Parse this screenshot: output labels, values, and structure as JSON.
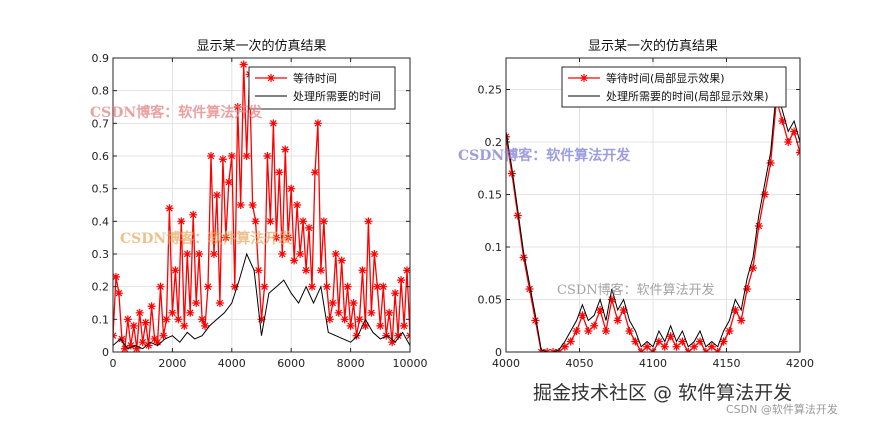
{
  "chart_data": [
    {
      "type": "line",
      "title": "显示某一次的仿真结果",
      "xlim": [
        0,
        10000
      ],
      "ylim": [
        0,
        0.9
      ],
      "xticks": [
        0,
        2000,
        4000,
        6000,
        8000,
        10000
      ],
      "yticks": [
        0,
        0.1,
        0.2,
        0.3,
        0.4,
        0.5,
        0.6,
        0.7,
        0.8,
        0.9
      ],
      "grid": true,
      "legend_position": "top-right",
      "series": [
        {
          "name": "等待时间",
          "color": "#ff0000",
          "marker": "asterisk",
          "x": [
            0,
            100,
            200,
            300,
            400,
            500,
            600,
            700,
            800,
            900,
            1000,
            1100,
            1200,
            1300,
            1400,
            1500,
            1600,
            1700,
            1800,
            1900,
            2000,
            2100,
            2200,
            2300,
            2400,
            2500,
            2600,
            2700,
            2800,
            2900,
            3000,
            3100,
            3200,
            3300,
            3400,
            3500,
            3600,
            3700,
            3800,
            3900,
            4000,
            4100,
            4200,
            4300,
            4400,
            4500,
            4600,
            4700,
            4800,
            4900,
            5000,
            5100,
            5200,
            5300,
            5400,
            5500,
            5600,
            5700,
            5800,
            5900,
            6000,
            6100,
            6200,
            6300,
            6400,
            6500,
            6600,
            6700,
            6800,
            6900,
            7000,
            7100,
            7200,
            7300,
            7400,
            7500,
            7600,
            7700,
            7800,
            7900,
            8000,
            8100,
            8200,
            8300,
            8400,
            8500,
            8600,
            8700,
            8800,
            8900,
            9000,
            9100,
            9200,
            9300,
            9400,
            9500,
            9600,
            9700,
            9800,
            9900,
            10000
          ],
          "y": [
            0.05,
            0.23,
            0.18,
            0.04,
            0.01,
            0.1,
            0.02,
            0.08,
            0.01,
            0.12,
            0.03,
            0.09,
            0.02,
            0.14,
            0.04,
            0.03,
            0.2,
            0.05,
            0.1,
            0.44,
            0.12,
            0.25,
            0.1,
            0.4,
            0.08,
            0.3,
            0.12,
            0.42,
            0.15,
            0.3,
            0.1,
            0.08,
            0.2,
            0.6,
            0.3,
            0.48,
            0.15,
            0.59,
            0.35,
            0.52,
            0.6,
            0.2,
            0.75,
            0.45,
            0.88,
            0.6,
            0.85,
            0.45,
            0.4,
            0.25,
            0.1,
            0.2,
            0.6,
            0.4,
            0.7,
            0.35,
            0.55,
            0.3,
            0.62,
            0.35,
            0.5,
            0.28,
            0.45,
            0.3,
            0.4,
            0.25,
            0.38,
            0.2,
            0.55,
            0.7,
            0.25,
            0.4,
            0.2,
            0.1,
            0.15,
            0.3,
            0.12,
            0.28,
            0.1,
            0.2,
            0.08,
            0.15,
            0.05,
            0.1,
            0.25,
            0.08,
            0.4,
            0.12,
            0.3,
            0.2,
            0.08,
            0.2,
            0.05,
            0.12,
            0.03,
            0.18,
            0.05,
            0.22,
            0.08,
            0.25,
            0.05
          ]
        },
        {
          "name": "处理所需要的时间",
          "color": "#000000",
          "x": [
            0,
            250,
            500,
            750,
            1000,
            1250,
            1500,
            1750,
            2000,
            2250,
            2500,
            2750,
            3000,
            3250,
            3500,
            3750,
            4000,
            4250,
            4500,
            4750,
            5000,
            5250,
            5500,
            5750,
            6000,
            6250,
            6500,
            6750,
            7000,
            7250,
            7500,
            7750,
            8000,
            8250,
            8500,
            8750,
            9000,
            9250,
            9500,
            9750,
            10000
          ],
          "y": [
            0.02,
            0.04,
            0.01,
            0.02,
            0.01,
            0.03,
            0.02,
            0.04,
            0.05,
            0.03,
            0.06,
            0.04,
            0.05,
            0.08,
            0.1,
            0.12,
            0.15,
            0.22,
            0.3,
            0.25,
            0.05,
            0.18,
            0.2,
            0.22,
            0.18,
            0.15,
            0.2,
            0.15,
            0.2,
            0.06,
            0.05,
            0.04,
            0.03,
            0.05,
            0.1,
            0.06,
            0.04,
            0.05,
            0.03,
            0.06,
            0.02
          ]
        }
      ],
      "watermarks": [
        "CSDN博客：软件算法开发",
        "CSDN博客：软件算法开发"
      ]
    },
    {
      "type": "line",
      "title": "显示某一次的仿真结果",
      "xlim": [
        4000,
        4200
      ],
      "ylim": [
        0,
        0.28
      ],
      "xticks": [
        4000,
        4050,
        4100,
        4150,
        4200
      ],
      "yticks": [
        0,
        0.05,
        0.1,
        0.15,
        0.2,
        0.25
      ],
      "grid": true,
      "legend_position": "top-right",
      "series": [
        {
          "name": "等待时间(局部显示效果)",
          "color": "#ff0000",
          "marker": "asterisk",
          "x": [
            4000,
            4004,
            4008,
            4012,
            4016,
            4020,
            4024,
            4028,
            4032,
            4036,
            4040,
            4044,
            4048,
            4052,
            4056,
            4060,
            4064,
            4068,
            4072,
            4076,
            4080,
            4084,
            4088,
            4092,
            4096,
            4100,
            4104,
            4108,
            4112,
            4116,
            4120,
            4124,
            4128,
            4132,
            4136,
            4140,
            4144,
            4148,
            4152,
            4156,
            4160,
            4164,
            4168,
            4172,
            4176,
            4180,
            4184,
            4188,
            4192,
            4196,
            4200
          ],
          "y": [
            0.205,
            0.17,
            0.13,
            0.09,
            0.06,
            0.03,
            0.0,
            0.0,
            0.0,
            0.0,
            0.005,
            0.01,
            0.02,
            0.035,
            0.02,
            0.025,
            0.04,
            0.02,
            0.05,
            0.03,
            0.04,
            0.02,
            0.01,
            0.0,
            0.005,
            0.0,
            0.01,
            0.005,
            0.015,
            0.005,
            0.01,
            0.0,
            0.005,
            0.01,
            0.0,
            0.005,
            0.0,
            0.01,
            0.02,
            0.04,
            0.03,
            0.06,
            0.08,
            0.12,
            0.15,
            0.18,
            0.24,
            0.22,
            0.2,
            0.21,
            0.19
          ]
        },
        {
          "name": "处理所需要的时间(局部显示效果)",
          "color": "#000000",
          "x": [
            4000,
            4004,
            4008,
            4012,
            4016,
            4020,
            4024,
            4028,
            4032,
            4036,
            4040,
            4044,
            4048,
            4052,
            4056,
            4060,
            4064,
            4068,
            4072,
            4076,
            4080,
            4084,
            4088,
            4092,
            4096,
            4100,
            4104,
            4108,
            4112,
            4116,
            4120,
            4124,
            4128,
            4132,
            4136,
            4140,
            4144,
            4148,
            4152,
            4156,
            4160,
            4164,
            4168,
            4172,
            4176,
            4180,
            4184,
            4188,
            4192,
            4196,
            4200
          ],
          "y": [
            0.21,
            0.175,
            0.135,
            0.095,
            0.065,
            0.035,
            0.002,
            0.0,
            0.0,
            0.002,
            0.01,
            0.02,
            0.03,
            0.045,
            0.03,
            0.035,
            0.05,
            0.03,
            0.06,
            0.04,
            0.05,
            0.03,
            0.02,
            0.005,
            0.01,
            0.005,
            0.02,
            0.01,
            0.025,
            0.01,
            0.02,
            0.005,
            0.01,
            0.02,
            0.005,
            0.01,
            0.005,
            0.02,
            0.03,
            0.05,
            0.04,
            0.07,
            0.09,
            0.13,
            0.16,
            0.19,
            0.25,
            0.23,
            0.21,
            0.22,
            0.2
          ]
        }
      ],
      "watermarks": [
        "CSDN博客：软件算法开发",
        "CSDN博客：软件算法开发"
      ]
    }
  ],
  "footer": {
    "brand_text": "掘金技术社区 @ 软件算法开发",
    "csdn_text": "CSDN @软件算法开发"
  }
}
